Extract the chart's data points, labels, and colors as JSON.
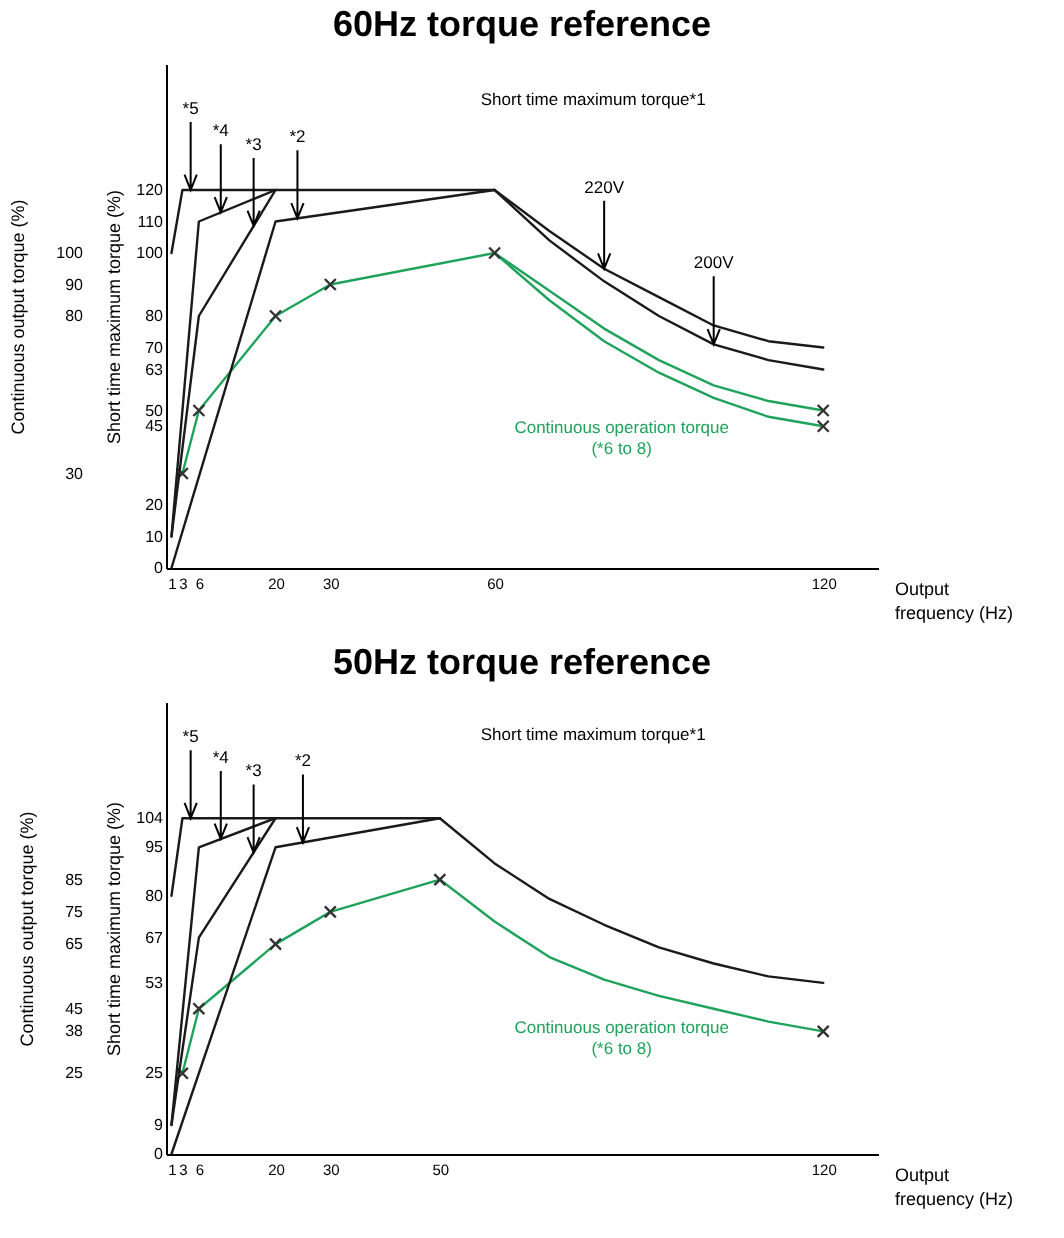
{
  "chart_data": [
    {
      "type": "line",
      "title": "60Hz torque reference",
      "xlabel": "Output\nfrequency (Hz)",
      "ylabel": "Continuous output torque (%)",
      "y2label": "Short time maximum torque (%)",
      "xlim": [
        0,
        130
      ],
      "xticks": [
        1,
        3,
        6,
        20,
        30,
        60,
        120
      ],
      "ylim": [
        0,
        160
      ],
      "yticks": [
        30,
        80,
        90,
        100
      ],
      "y2lim": [
        0,
        160
      ],
      "y2ticks": [
        0,
        10,
        20,
        45,
        50,
        63,
        70,
        80,
        100,
        110,
        120
      ],
      "series": [
        {
          "axis": "y",
          "color": "#1fa35c",
          "x": [
            3,
            6,
            20,
            30,
            60
          ],
          "values": [
            30,
            50,
            80,
            90,
            100
          ]
        },
        {
          "axis": "y",
          "color": "#1fa35c",
          "x": [
            60,
            70,
            80,
            90,
            100,
            110,
            120
          ],
          "values": [
            100,
            88,
            76,
            66,
            58,
            53,
            50
          ]
        },
        {
          "axis": "y",
          "color": "#1fa35c",
          "x": [
            60,
            70,
            80,
            90,
            100,
            110,
            120
          ],
          "values": [
            100,
            85,
            72,
            62,
            54,
            48,
            45
          ]
        },
        {
          "axis": "y",
          "type": "scatter",
          "marker": "cross",
          "color": "#333333",
          "x": [
            3,
            6,
            20,
            30,
            60,
            120,
            120
          ],
          "values": [
            30,
            50,
            80,
            90,
            100,
            50,
            45
          ]
        },
        {
          "axis": "y2",
          "color": "#1a1a1a",
          "x": [
            1,
            3,
            60
          ],
          "values": [
            100,
            120,
            120
          ]
        },
        {
          "axis": "y2",
          "color": "#1a1a1a",
          "x": [
            1,
            6,
            20
          ],
          "values": [
            10,
            110,
            120
          ]
        },
        {
          "axis": "y2",
          "color": "#1a1a1a",
          "x": [
            1,
            6,
            20
          ],
          "values": [
            10,
            80,
            120
          ]
        },
        {
          "axis": "y2",
          "color": "#1a1a1a",
          "x": [
            1,
            20,
            60
          ],
          "values": [
            0,
            110,
            120
          ]
        },
        {
          "axis": "y2",
          "color": "#1a1a1a",
          "x": [
            60,
            70,
            80,
            90,
            100,
            110,
            120
          ],
          "values": [
            120,
            107,
            95,
            86,
            77,
            72,
            70
          ]
        },
        {
          "axis": "y2",
          "color": "#1a1a1a",
          "x": [
            60,
            70,
            80,
            90,
            100,
            110,
            120
          ],
          "values": [
            120,
            104,
            91,
            80,
            71,
            66,
            63
          ]
        }
      ],
      "annotations": [
        {
          "text": "*5",
          "x": 4.5,
          "y": 120
        },
        {
          "text": "*4",
          "x": 10,
          "y": 112.9
        },
        {
          "text": "*3",
          "x": 16,
          "y": 108.6
        },
        {
          "text": "*2",
          "x": 24,
          "y": 111
        },
        "Short time maximum torque*1",
        {
          "text": "220V",
          "x": 80,
          "y": 95
        },
        {
          "text": "200V",
          "x": 100,
          "y": 71
        },
        "Continuous operation torque\n(*6 to 8)"
      ]
    },
    {
      "type": "line",
      "title": "50Hz torque reference",
      "xlabel": "Output\nfrequency (Hz)",
      "ylabel": "Continuous output torque (%)",
      "y2label": "Short time maximum torque (%)",
      "xlim": [
        0,
        130
      ],
      "xticks": [
        1,
        3,
        6,
        20,
        30,
        50,
        120
      ],
      "ylim": [
        0,
        140
      ],
      "yticks": [
        25,
        38,
        45,
        65,
        75,
        85
      ],
      "y2lim": [
        0,
        140
      ],
      "y2ticks": [
        0,
        9,
        25,
        53,
        67,
        80,
        95,
        104
      ],
      "series": [
        {
          "axis": "y",
          "color": "#1fa35c",
          "x": [
            3,
            6,
            20,
            30,
            50
          ],
          "values": [
            25,
            45,
            65,
            75,
            85
          ]
        },
        {
          "axis": "y",
          "color": "#1fa35c",
          "x": [
            50,
            60,
            70,
            80,
            90,
            100,
            110,
            120
          ],
          "values": [
            85,
            72,
            61,
            54,
            49,
            45,
            41,
            38
          ]
        },
        {
          "axis": "y",
          "type": "scatter",
          "marker": "cross",
          "color": "#333333",
          "x": [
            3,
            6,
            20,
            30,
            50,
            120
          ],
          "values": [
            25,
            45,
            65,
            75,
            85,
            38
          ]
        },
        {
          "axis": "y2",
          "color": "#1a1a1a",
          "x": [
            1,
            3,
            50
          ],
          "values": [
            80,
            104,
            104
          ]
        },
        {
          "axis": "y2",
          "color": "#1a1a1a",
          "x": [
            1,
            6,
            20
          ],
          "values": [
            9,
            95,
            104
          ]
        },
        {
          "axis": "y2",
          "color": "#1a1a1a",
          "x": [
            1,
            6,
            20
          ],
          "values": [
            9,
            67,
            104
          ]
        },
        {
          "axis": "y2",
          "color": "#1a1a1a",
          "x": [
            1,
            20,
            50
          ],
          "values": [
            0,
            95,
            104
          ]
        },
        {
          "axis": "y2",
          "color": "#1a1a1a",
          "x": [
            50,
            60,
            70,
            80,
            90,
            100,
            110,
            120
          ],
          "values": [
            104,
            90,
            79,
            71,
            64,
            59,
            55,
            53
          ]
        }
      ],
      "annotations": [
        {
          "text": "*5",
          "x": 4.5,
          "y": 104
        },
        {
          "text": "*4",
          "x": 10,
          "y": 97.6
        },
        {
          "text": "*3",
          "x": 16,
          "y": 93.4
        },
        {
          "text": "*2",
          "x": 25,
          "y": 96.5
        },
        "Short time maximum torque*1",
        "Continuous operation torque\n(*6 to 8)"
      ]
    }
  ]
}
